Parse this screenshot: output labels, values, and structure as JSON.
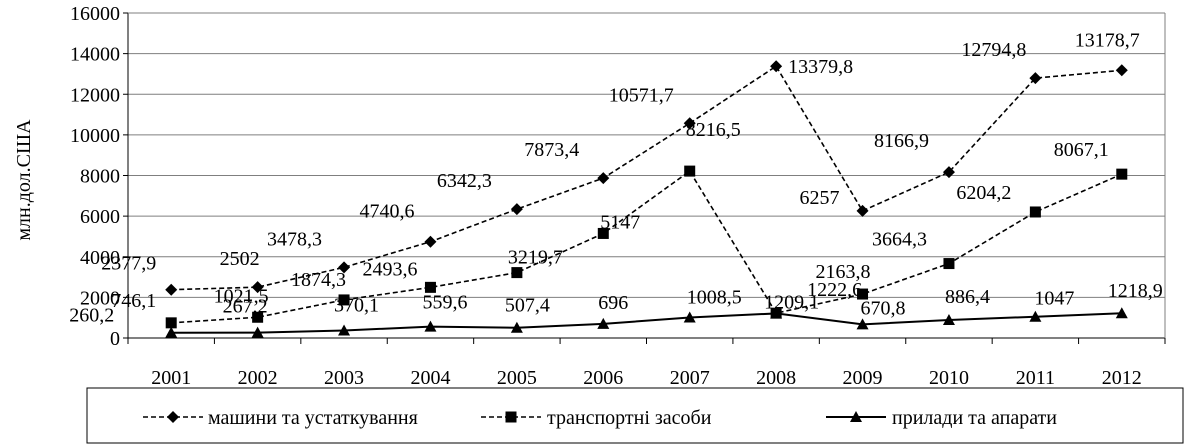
{
  "chart_data": {
    "type": "line",
    "ylabel": "млн.дол.США",
    "xlabel": "",
    "ylim": [
      0,
      16000
    ],
    "yticks": [
      0,
      2000,
      4000,
      6000,
      8000,
      10000,
      12000,
      14000,
      16000
    ],
    "grid": "horizontal",
    "legend_position": "bottom",
    "categories": [
      "2001",
      "2002",
      "2003",
      "2004",
      "2005",
      "2006",
      "2007",
      "2008",
      "2009",
      "2010",
      "2011",
      "2012"
    ],
    "series": [
      {
        "name": "машини та устаткування",
        "marker": "diamond",
        "line": "dashed",
        "values": [
          2377.9,
          2502,
          3478.3,
          4740.6,
          6342.3,
          7873.4,
          10571.7,
          13379.8,
          6257,
          8166.9,
          12794.8,
          13178.7
        ],
        "labels": [
          "2377,9",
          "2502",
          "3478,3",
          "4740,6",
          "6342,3",
          "7873,4",
          "10571,7",
          "13379,8",
          "6257",
          "8166,9",
          "12794,8",
          "13178,7"
        ]
      },
      {
        "name": "транспортні засоби",
        "marker": "square",
        "line": "dashed",
        "values": [
          746.1,
          1021.5,
          1874.3,
          2493.6,
          3219.7,
          5147,
          8216.5,
          1222.6,
          2163.8,
          3664.3,
          6204.2,
          8067.1
        ],
        "labels": [
          "746,1",
          "1021,5",
          "1874,3",
          "2493,6",
          "3219,7",
          "5147",
          "8216,5",
          "1222,6",
          "2163,8",
          "3664,3",
          "6204,2",
          "8067,1"
        ]
      },
      {
        "name": "прилади та апарати",
        "marker": "triangle",
        "line": "solid",
        "values": [
          260.2,
          267.2,
          370.1,
          559.6,
          507.4,
          696,
          1008.5,
          1209.1,
          670.8,
          886.4,
          1047,
          1218.9
        ],
        "labels": [
          "260,2",
          "267,2",
          "370,1",
          "559,6",
          "507,4",
          "696",
          "1008,5",
          "1209,1",
          "670,8",
          "886,4",
          "1047",
          "1218,9"
        ]
      }
    ]
  }
}
